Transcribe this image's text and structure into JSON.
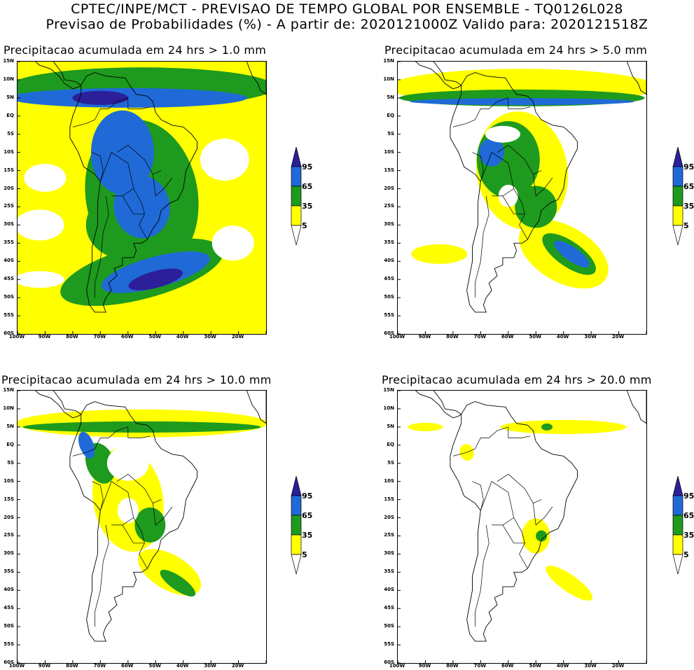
{
  "header": {
    "line1": "CPTEC/INPE/MCT - PREVISAO DE TEMPO GLOBAL POR ENSEMBLE - TQ0126L028",
    "line2": "Previsao de Probabilidades (%) -  A partir de: 2020121000Z  Valido para: 2020121518Z"
  },
  "panels": [
    {
      "id": "p1",
      "title": "Precipitacao acumulada em 24 hrs > 1.0 mm",
      "threshold_mm": 1.0
    },
    {
      "id": "p2",
      "title": "Precipitacao acumulada em 24 hrs > 5.0 mm",
      "threshold_mm": 5.0
    },
    {
      "id": "p3",
      "title": "Precipitacao acumulada em 24 hrs > 10.0 mm",
      "threshold_mm": 10.0
    },
    {
      "id": "p4",
      "title": "Precipitacao acumulada em 24 hrs > 20.0 mm",
      "threshold_mm": 20.0
    }
  ],
  "lat_labels": [
    "15N",
    "10N",
    "5N",
    "EQ",
    "5S",
    "10S",
    "15S",
    "20S",
    "25S",
    "30S",
    "35S",
    "40S",
    "45S",
    "50S",
    "55S",
    "60S"
  ],
  "lon_labels": [
    "100W",
    "90W",
    "80W",
    "70W",
    "60W",
    "50W",
    "40W",
    "30W",
    "20W"
  ],
  "legend": {
    "labels": [
      "95",
      "65",
      "35",
      "5"
    ],
    "colors": {
      "c95": "#2b1f9a",
      "c65": "#1f6ad6",
      "c35": "#1e9a1e",
      "c5": "#ffff00"
    }
  },
  "colors": {
    "ocean": "#ffffff",
    "border": "#000000"
  }
}
